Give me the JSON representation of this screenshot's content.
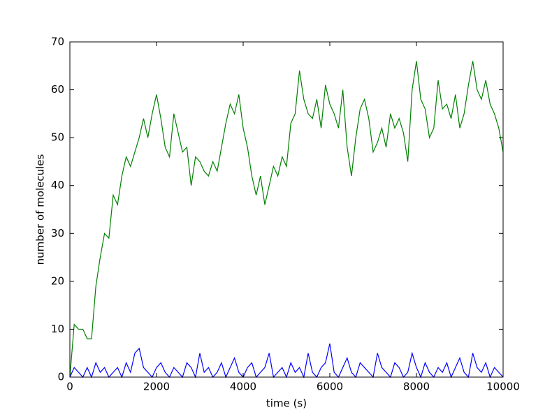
{
  "chart_data": {
    "type": "line",
    "xlabel": "time (s)",
    "ylabel": "number of molecules",
    "x": [
      0,
      100,
      200,
      300,
      400,
      500,
      600,
      700,
      800,
      900,
      1000,
      1100,
      1200,
      1300,
      1400,
      1500,
      1600,
      1700,
      1800,
      1900,
      2000,
      2100,
      2200,
      2300,
      2400,
      2500,
      2600,
      2700,
      2800,
      2900,
      3000,
      3100,
      3200,
      3300,
      3400,
      3500,
      3600,
      3700,
      3800,
      3900,
      4000,
      4100,
      4200,
      4300,
      4400,
      4500,
      4600,
      4700,
      4800,
      4900,
      5000,
      5100,
      5200,
      5300,
      5400,
      5500,
      5600,
      5700,
      5800,
      5900,
      6000,
      6100,
      6200,
      6300,
      6400,
      6500,
      6600,
      6700,
      6800,
      6900,
      7000,
      7100,
      7200,
      7300,
      7400,
      7500,
      7600,
      7700,
      7800,
      7900,
      8000,
      8100,
      8200,
      8300,
      8400,
      8500,
      8600,
      8700,
      8800,
      8900,
      9000,
      9100,
      9200,
      9300,
      9400,
      9500,
      9600,
      9700,
      9800,
      9900,
      10000
    ],
    "series": [
      {
        "color": "#008000",
        "values": [
          0,
          11,
          10,
          10,
          8,
          8,
          19,
          25,
          30,
          29,
          38,
          36,
          42,
          46,
          44,
          47,
          50,
          54,
          50,
          55,
          59,
          54,
          48,
          46,
          55,
          51,
          47,
          48,
          40,
          46,
          45,
          43,
          42,
          45,
          43,
          48,
          53,
          57,
          55,
          59,
          52,
          48,
          42,
          38,
          42,
          36,
          40,
          44,
          42,
          46,
          44,
          53,
          55,
          64,
          58,
          55,
          54,
          58,
          52,
          61,
          57,
          55,
          52,
          60,
          48,
          42,
          50,
          56,
          58,
          54,
          47,
          49,
          52,
          48,
          55,
          52,
          54,
          51,
          45,
          60,
          66,
          58,
          56,
          50,
          52,
          62,
          56,
          57,
          54,
          59,
          52,
          55,
          61,
          66,
          60,
          58,
          62,
          57,
          55,
          52,
          47
        ]
      },
      {
        "color": "#0000ff",
        "values": [
          0,
          2,
          1,
          0,
          2,
          0,
          3,
          1,
          2,
          0,
          1,
          2,
          0,
          3,
          1,
          5,
          6,
          2,
          1,
          0,
          2,
          3,
          1,
          0,
          2,
          1,
          0,
          3,
          2,
          0,
          5,
          1,
          2,
          0,
          1,
          3,
          0,
          2,
          4,
          1,
          0,
          2,
          3,
          0,
          1,
          2,
          5,
          0,
          1,
          2,
          0,
          3,
          1,
          2,
          0,
          5,
          1,
          0,
          2,
          3,
          7,
          1,
          0,
          2,
          4,
          1,
          0,
          3,
          2,
          1,
          0,
          5,
          2,
          1,
          0,
          3,
          2,
          0,
          1,
          5,
          2,
          0,
          3,
          1,
          0,
          2,
          1,
          3,
          0,
          2,
          4,
          1,
          0,
          5,
          2,
          1,
          3,
          0,
          2,
          1,
          0
        ]
      }
    ],
    "xlim": [
      0,
      10000
    ],
    "xticks": [
      0,
      2000,
      4000,
      6000,
      8000,
      10000
    ],
    "ylim": [
      0,
      70
    ],
    "yticks": [
      0,
      10,
      20,
      30,
      40,
      50,
      60,
      70
    ],
    "grid": false
  }
}
